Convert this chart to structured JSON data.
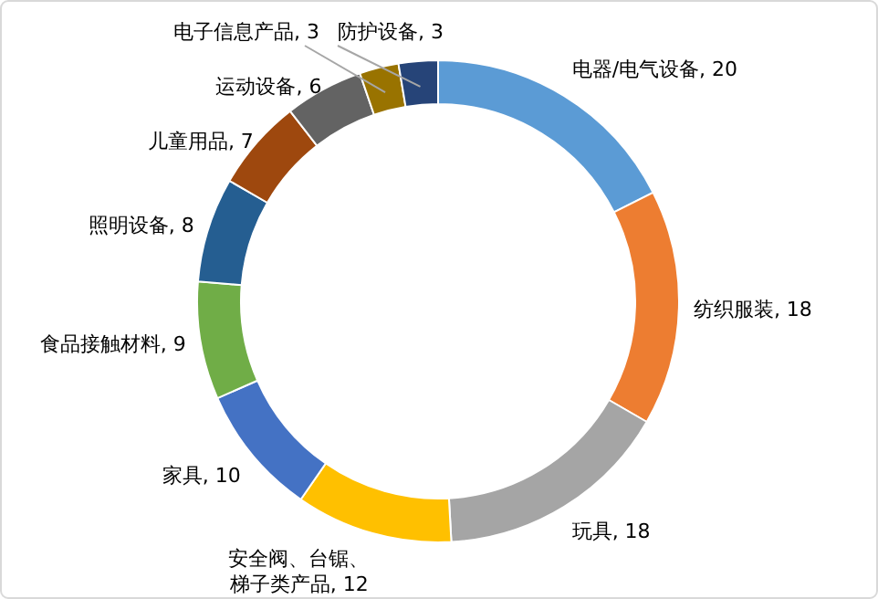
{
  "chart_data": {
    "type": "donut",
    "categories": [
      "电器/电气设备",
      "纺织服装",
      "玩具",
      "安全阀、台锯、梯子类产品",
      "家具",
      "食品接触材料",
      "照明设备",
      "儿童用品",
      "运动设备",
      "电子信息产品",
      "防护设备"
    ],
    "values": [
      20,
      18,
      18,
      12,
      10,
      9,
      8,
      7,
      6,
      3,
      3
    ],
    "colors": [
      "#5b9bd5",
      "#ed7d31",
      "#a5a5a5",
      "#ffc000",
      "#4472c4",
      "#70ad47",
      "#255e91",
      "#9e480e",
      "#636363",
      "#997300",
      "#264478"
    ],
    "value_labels": [
      ", 20",
      ", 18",
      ", 18",
      ", 12",
      ", 10",
      ", 9",
      ", 8",
      ", 7",
      ", 6",
      ", 3",
      ", 3"
    ]
  }
}
